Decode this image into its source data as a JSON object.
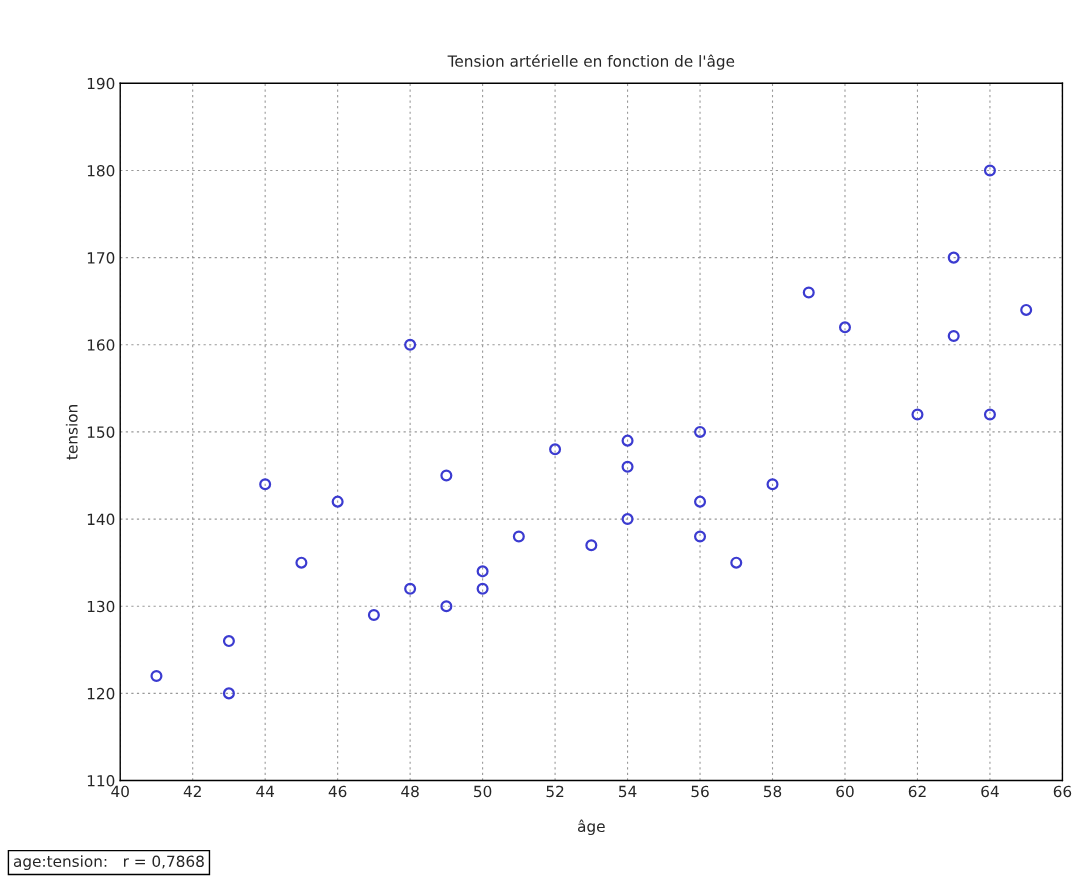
{
  "chart_data": {
    "type": "scatter",
    "title": "Tension artérielle en fonction de l'âge",
    "xlabel": "âge",
    "ylabel": "tension",
    "x": [
      41,
      43,
      43,
      44,
      45,
      46,
      47,
      48,
      48,
      49,
      49,
      50,
      50,
      51,
      52,
      53,
      54,
      54,
      54,
      56,
      56,
      56,
      57,
      58,
      59,
      60,
      62,
      63,
      63,
      64,
      64,
      65
    ],
    "series": [
      {
        "color": "#3b3bd0",
        "values": [
          122,
          126,
          120,
          144,
          135,
          142,
          129,
          160,
          132,
          145,
          130,
          134,
          132,
          138,
          148,
          137,
          149,
          146,
          140,
          150,
          142,
          138,
          135,
          144,
          166,
          162,
          152,
          170,
          161,
          180,
          152,
          164
        ]
      }
    ],
    "xlim": [
      40,
      66
    ],
    "xticks": [
      40,
      42,
      44,
      46,
      48,
      50,
      52,
      54,
      56,
      58,
      60,
      62,
      64,
      66
    ],
    "ylim": [
      110,
      190
    ],
    "yticks": [
      110,
      120,
      130,
      140,
      150,
      160,
      170,
      180,
      190
    ],
    "grid": true,
    "marker": "circle",
    "annotations": [
      "age:tension:   r = 0,7868"
    ]
  }
}
